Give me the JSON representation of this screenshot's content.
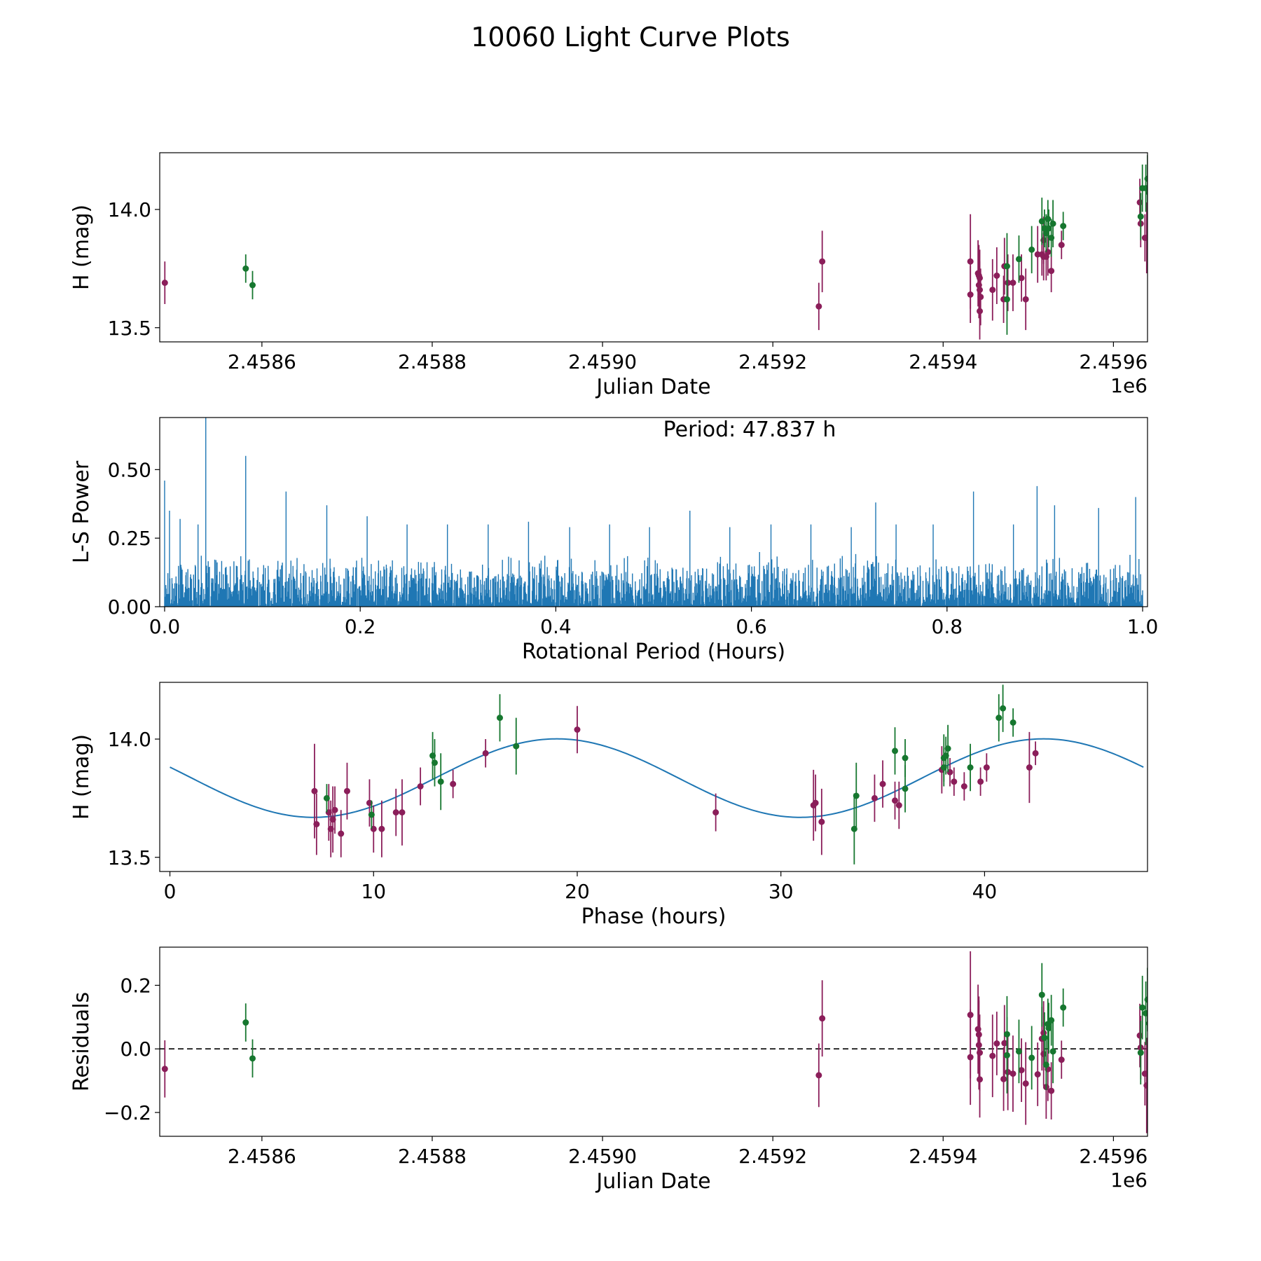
{
  "figure_title": "10060 Light Curve Plots",
  "colors": {
    "magenta": "#8b1e5a",
    "green": "#16772f",
    "line": "#1f77b4",
    "frame": "#000000"
  },
  "chart_data": [
    {
      "id": "lc",
      "type": "scatter",
      "title": "",
      "xlabel": "Julian Date",
      "ylabel": "H (mag)",
      "offset_label": "1e6",
      "xlim": [
        2.45848,
        2.45964
      ],
      "ylim": [
        13.44,
        14.24
      ],
      "xticks": [
        2.4586,
        2.4588,
        2.459,
        2.4592,
        2.4594,
        2.4596
      ],
      "xtick_labels": [
        "2.4586",
        "2.4588",
        "2.4590",
        "2.4592",
        "2.4594",
        "2.4596"
      ],
      "yticks": [
        13.5,
        14.0
      ],
      "ytick_labels": [
        "13.5",
        "14.0"
      ],
      "series": [
        {
          "name": "magenta",
          "color": "#8b1e5a",
          "points": [
            [
              2.458486,
              13.69,
              0.09
            ],
            [
              2.459254,
              13.59,
              0.1
            ],
            [
              2.459258,
              13.78,
              0.13
            ],
            [
              2.459432,
              13.64,
              0.12
            ],
            [
              2.459432,
              13.78,
              0.2
            ],
            [
              2.459441,
              13.73,
              0.14
            ],
            [
              2.459442,
              13.72,
              0.13
            ],
            [
              2.459442,
              13.68,
              0.14
            ],
            [
              2.459443,
              13.66,
              0.12
            ],
            [
              2.459443,
              13.57,
              0.12
            ],
            [
              2.459444,
              13.63,
              0.12
            ],
            [
              2.459443,
              13.71,
              0.12
            ],
            [
              2.459458,
              13.66,
              0.13
            ],
            [
              2.459463,
              13.72,
              0.12
            ],
            [
              2.459471,
              13.62,
              0.1
            ],
            [
              2.459472,
              13.76,
              0.12
            ],
            [
              2.459476,
              13.69,
              0.12
            ],
            [
              2.459482,
              13.69,
              0.12
            ],
            [
              2.459492,
              13.71,
              0.1
            ],
            [
              2.459497,
              13.62,
              0.13
            ],
            [
              2.459511,
              13.81,
              0.12
            ],
            [
              2.459516,
              13.81,
              0.09
            ],
            [
              2.459518,
              13.87,
              0.1
            ],
            [
              2.459518,
              13.8,
              0.1
            ],
            [
              2.459521,
              13.8,
              0.1
            ],
            [
              2.459523,
              13.82,
              0.1
            ],
            [
              2.459527,
              13.74,
              0.09
            ],
            [
              2.459539,
              13.85,
              0.06
            ],
            [
              2.459631,
              14.03,
              0.1
            ],
            [
              2.459632,
              13.94,
              0.1
            ],
            [
              2.459637,
              13.88,
              0.1
            ],
            [
              2.459639,
              13.88,
              0.15
            ],
            [
              2.459642,
              13.94,
              0.1
            ]
          ]
        },
        {
          "name": "green",
          "color": "#16772f",
          "points": [
            [
              2.458581,
              13.75,
              0.06
            ],
            [
              2.458589,
              13.68,
              0.06
            ],
            [
              2.459475,
              13.62,
              0.15
            ],
            [
              2.459475,
              13.76,
              0.14
            ],
            [
              2.459489,
              13.79,
              0.1
            ],
            [
              2.459504,
              13.83,
              0.1
            ],
            [
              2.459516,
              13.95,
              0.1
            ],
            [
              2.459519,
              13.92,
              0.08
            ],
            [
              2.459521,
              13.9,
              0.08
            ],
            [
              2.459523,
              13.96,
              0.08
            ],
            [
              2.459524,
              13.92,
              0.08
            ],
            [
              2.459527,
              13.88,
              0.08
            ],
            [
              2.459529,
              13.94,
              0.1
            ],
            [
              2.459541,
              13.93,
              0.06
            ],
            [
              2.459632,
              13.97,
              0.1
            ],
            [
              2.459634,
              14.09,
              0.1
            ],
            [
              2.459638,
              14.09,
              0.1
            ],
            [
              2.45964,
              14.13,
              0.1
            ],
            [
              2.459642,
              14.07,
              0.1
            ]
          ]
        }
      ]
    },
    {
      "id": "ls",
      "type": "line",
      "title": "",
      "xlabel": "Rotational Period (Hours)",
      "ylabel": "L-S Power",
      "xlim": [
        -0.005,
        1.005
      ],
      "ylim": [
        0.0,
        0.69
      ],
      "xticks": [
        0.0,
        0.2,
        0.4,
        0.6,
        0.8,
        1.0
      ],
      "xtick_labels": [
        "0.0",
        "0.2",
        "0.4",
        "0.6",
        "0.8",
        "1.0"
      ],
      "yticks": [
        0.0,
        0.25,
        0.5
      ],
      "ytick_labels": [
        "0.00",
        "0.25",
        "0.50"
      ],
      "annotation": "Period: 47.837 h",
      "baseline_max": 0.2,
      "peaks": [
        [
          0.0,
          0.46
        ],
        [
          0.005,
          0.35
        ],
        [
          0.016,
          0.32
        ],
        [
          0.042,
          0.69
        ],
        [
          0.083,
          0.55
        ],
        [
          0.034,
          0.3
        ],
        [
          0.124,
          0.42
        ],
        [
          0.166,
          0.37
        ],
        [
          0.207,
          0.33
        ],
        [
          0.248,
          0.3
        ],
        [
          0.289,
          0.3
        ],
        [
          0.331,
          0.3
        ],
        [
          0.372,
          0.31
        ],
        [
          0.414,
          0.29
        ],
        [
          0.455,
          0.3
        ],
        [
          0.496,
          0.29
        ],
        [
          0.537,
          0.35
        ],
        [
          0.578,
          0.29
        ],
        [
          0.62,
          0.3
        ],
        [
          0.661,
          0.3
        ],
        [
          0.702,
          0.29
        ],
        [
          0.727,
          0.38
        ],
        [
          0.748,
          0.3
        ],
        [
          0.786,
          0.3
        ],
        [
          0.827,
          0.42
        ],
        [
          0.868,
          0.3
        ],
        [
          0.892,
          0.44
        ],
        [
          0.91,
          0.37
        ],
        [
          0.955,
          0.36
        ],
        [
          0.993,
          0.4
        ]
      ]
    },
    {
      "id": "phase",
      "type": "scatter",
      "title": "",
      "xlabel": "Phase (hours)",
      "ylabel": "H (mag)",
      "xlim": [
        -0.5,
        48.0
      ],
      "ylim": [
        13.44,
        14.24
      ],
      "xticks": [
        0,
        10,
        20,
        30,
        40
      ],
      "xtick_labels": [
        "0",
        "10",
        "20",
        "30",
        "40"
      ],
      "yticks": [
        13.5,
        14.0
      ],
      "ytick_labels": [
        "13.5",
        "14.0"
      ],
      "model": {
        "mean": 13.835,
        "amplitude": 0.166,
        "period": 23.9,
        "phase_of_max": 19.0,
        "x_end": 47.8
      },
      "series": [
        {
          "name": "magenta",
          "color": "#8b1e5a",
          "points": [
            [
              7.1,
              13.78,
              0.2
            ],
            [
              7.2,
              13.64,
              0.13
            ],
            [
              7.8,
              13.69,
              0.12
            ],
            [
              7.9,
              13.62,
              0.12
            ],
            [
              8.0,
              13.66,
              0.14
            ],
            [
              8.1,
              13.7,
              0.1
            ],
            [
              8.4,
              13.6,
              0.1
            ],
            [
              8.7,
              13.78,
              0.12
            ],
            [
              9.8,
              13.73,
              0.1
            ],
            [
              10.0,
              13.62,
              0.1
            ],
            [
              10.4,
              13.62,
              0.12
            ],
            [
              11.1,
              13.69,
              0.1
            ],
            [
              11.4,
              13.69,
              0.14
            ],
            [
              12.3,
              13.8,
              0.08
            ],
            [
              13.9,
              13.81,
              0.06
            ],
            [
              15.5,
              13.94,
              0.06
            ],
            [
              20.0,
              14.04,
              0.1
            ],
            [
              26.8,
              13.69,
              0.08
            ],
            [
              31.6,
              13.72,
              0.15
            ],
            [
              31.7,
              13.73,
              0.12
            ],
            [
              32.0,
              13.65,
              0.14
            ],
            [
              34.6,
              13.75,
              0.1
            ],
            [
              35.0,
              13.81,
              0.1
            ],
            [
              35.6,
              13.74,
              0.08
            ],
            [
              35.8,
              13.72,
              0.1
            ],
            [
              37.9,
              13.87,
              0.1
            ],
            [
              38.3,
              13.86,
              0.06
            ],
            [
              38.5,
              13.82,
              0.06
            ],
            [
              39.0,
              13.8,
              0.06
            ],
            [
              39.8,
              13.82,
              0.06
            ],
            [
              40.1,
              13.88,
              0.06
            ],
            [
              42.2,
              13.88,
              0.15
            ],
            [
              42.5,
              13.94,
              0.05
            ]
          ]
        },
        {
          "name": "green",
          "color": "#16772f",
          "points": [
            [
              7.7,
              13.75,
              0.06
            ],
            [
              9.9,
              13.68,
              0.06
            ],
            [
              12.9,
              13.93,
              0.1
            ],
            [
              13.0,
              13.9,
              0.1
            ],
            [
              13.3,
              13.82,
              0.12
            ],
            [
              16.2,
              14.09,
              0.1
            ],
            [
              17.0,
              13.97,
              0.12
            ],
            [
              33.6,
              13.62,
              0.15
            ],
            [
              33.7,
              13.76,
              0.14
            ],
            [
              35.6,
              13.95,
              0.1
            ],
            [
              36.1,
              13.92,
              0.08
            ],
            [
              36.1,
              13.79,
              0.1
            ],
            [
              38.0,
              13.92,
              0.1
            ],
            [
              38.0,
              13.88,
              0.08
            ],
            [
              38.1,
              13.93,
              0.08
            ],
            [
              38.2,
              13.96,
              0.1
            ],
            [
              39.3,
              13.88,
              0.1
            ],
            [
              40.7,
              14.09,
              0.1
            ],
            [
              40.9,
              14.13,
              0.1
            ],
            [
              41.4,
              14.07,
              0.06
            ]
          ]
        }
      ]
    },
    {
      "id": "res",
      "type": "scatter",
      "title": "",
      "xlabel": "Julian Date",
      "ylabel": "Residuals",
      "offset_label": "1e6",
      "xlim": [
        2.45848,
        2.45964
      ],
      "ylim": [
        -0.275,
        0.32
      ],
      "xticks": [
        2.4586,
        2.4588,
        2.459,
        2.4592,
        2.4594,
        2.4596
      ],
      "xtick_labels": [
        "2.4586",
        "2.4588",
        "2.4590",
        "2.4592",
        "2.4594",
        "2.4596"
      ],
      "yticks": [
        -0.2,
        0.0,
        0.2
      ],
      "ytick_labels": [
        "−0.2",
        "0.0",
        "0.2"
      ],
      "reference_line": 0.0,
      "series": [
        {
          "name": "magenta",
          "color": "#8b1e5a",
          "points": [
            [
              2.458486,
              -0.063,
              0.09
            ],
            [
              2.459254,
              -0.083,
              0.1
            ],
            [
              2.459258,
              0.096,
              0.12
            ],
            [
              2.459432,
              0.107,
              0.2
            ],
            [
              2.459432,
              -0.026,
              0.15
            ],
            [
              2.459441,
              0.062,
              0.14
            ],
            [
              2.459442,
              0.045,
              0.12
            ],
            [
              2.459442,
              0.012,
              0.14
            ],
            [
              2.459443,
              -0.012,
              0.12
            ],
            [
              2.459443,
              -0.096,
              0.12
            ],
            [
              2.459458,
              -0.022,
              0.13
            ],
            [
              2.459463,
              0.017,
              0.1
            ],
            [
              2.459471,
              -0.095,
              0.1
            ],
            [
              2.459472,
              0.018,
              0.12
            ],
            [
              2.459476,
              -0.073,
              0.12
            ],
            [
              2.459482,
              -0.078,
              0.12
            ],
            [
              2.459492,
              -0.067,
              0.1
            ],
            [
              2.459497,
              -0.109,
              0.13
            ],
            [
              2.459511,
              -0.08,
              0.1
            ],
            [
              2.459516,
              0.032,
              0.1
            ],
            [
              2.459518,
              0.05,
              0.1
            ],
            [
              2.459518,
              -0.016,
              0.1
            ],
            [
              2.459521,
              -0.12,
              0.1
            ],
            [
              2.459523,
              -0.064,
              0.1
            ],
            [
              2.459527,
              -0.132,
              0.09
            ],
            [
              2.459539,
              -0.034,
              0.06
            ],
            [
              2.459631,
              0.042,
              0.1
            ],
            [
              2.459632,
              0.004,
              0.1
            ],
            [
              2.459637,
              -0.078,
              0.1
            ],
            [
              2.459639,
              -0.115,
              0.15
            ],
            [
              2.459642,
              -0.06,
              0.1
            ]
          ]
        },
        {
          "name": "green",
          "color": "#16772f",
          "points": [
            [
              2.458581,
              0.083,
              0.06
            ],
            [
              2.458589,
              -0.03,
              0.06
            ],
            [
              2.459475,
              0.046,
              0.12
            ],
            [
              2.459475,
              -0.02,
              0.12
            ],
            [
              2.459489,
              -0.008,
              0.1
            ],
            [
              2.459504,
              -0.028,
              0.1
            ],
            [
              2.459516,
              0.17,
              0.1
            ],
            [
              2.459519,
              0.035,
              0.08
            ],
            [
              2.459521,
              -0.05,
              0.08
            ],
            [
              2.459523,
              0.078,
              0.08
            ],
            [
              2.459524,
              0.065,
              0.08
            ],
            [
              2.459527,
              0.09,
              0.08
            ],
            [
              2.459529,
              -0.008,
              0.1
            ],
            [
              2.459541,
              0.13,
              0.06
            ],
            [
              2.459632,
              -0.012,
              0.1
            ],
            [
              2.459634,
              0.13,
              0.1
            ],
            [
              2.459638,
              0.112,
              0.1
            ],
            [
              2.45964,
              0.155,
              0.1
            ],
            [
              2.459642,
              0.08,
              0.1
            ]
          ]
        }
      ]
    }
  ]
}
